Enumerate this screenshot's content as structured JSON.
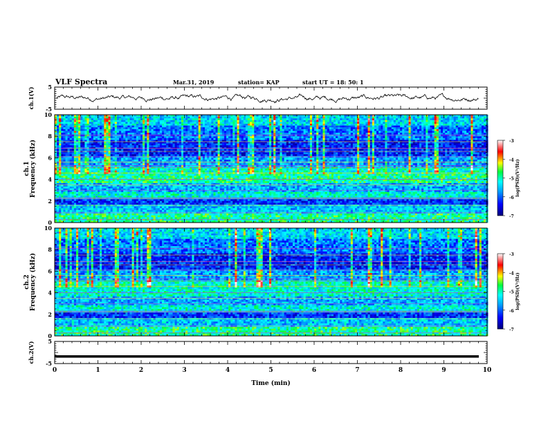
{
  "header": {
    "title": "VLF Spectra",
    "date": "Mar.31, 2019",
    "station": "station= KAP",
    "start": "start  UT =  18: 50: 1"
  },
  "chart_data": [
    {
      "type": "line",
      "ylabel": "ch.1(V)",
      "ylim": [
        -5,
        5
      ],
      "yticks": [
        "5",
        "-5"
      ],
      "xlim": [
        0,
        10
      ],
      "description_values": "signal fluctuating around 0 V, amplitude about ±1.5 V"
    },
    {
      "type": "heatmap",
      "ylabel": "Frequency (kHz)",
      "channel_label": "ch.1",
      "ylim": [
        0,
        10
      ],
      "yticks": [
        "0",
        "2",
        "4",
        "6",
        "8",
        "10"
      ],
      "xlim": [
        0,
        10
      ],
      "colorbar": {
        "label": "log(PSD)(V²/Hz)",
        "ticks": [
          "-3",
          "-4",
          "-5",
          "-6",
          "-7"
        ],
        "range": [
          -7,
          -3
        ]
      }
    },
    {
      "type": "heatmap",
      "ylabel": "Frequency (kHz)",
      "channel_label": "ch.2",
      "ylim": [
        0,
        10
      ],
      "yticks": [
        "0",
        "2",
        "4",
        "6",
        "8",
        "10"
      ],
      "xlim": [
        0,
        10
      ],
      "colorbar": {
        "label": "log(PSD)(V²/Hz)",
        "ticks": [
          "-3",
          "-4",
          "-5",
          "-6",
          "-7"
        ],
        "range": [
          -7,
          -3
        ]
      }
    },
    {
      "type": "line",
      "ylabel": "ch.2(V)",
      "ylim": [
        -5,
        5
      ],
      "yticks": [
        "5",
        "-5"
      ],
      "xlim": [
        0,
        10
      ],
      "values_constant": -1.8
    }
  ],
  "xaxis": {
    "label": "Time (min)",
    "ticks": [
      "0",
      "1",
      "2",
      "3",
      "4",
      "5",
      "6",
      "7",
      "8",
      "9",
      "10"
    ]
  },
  "colors": {
    "axis": "#000000",
    "trace": "#000000"
  }
}
